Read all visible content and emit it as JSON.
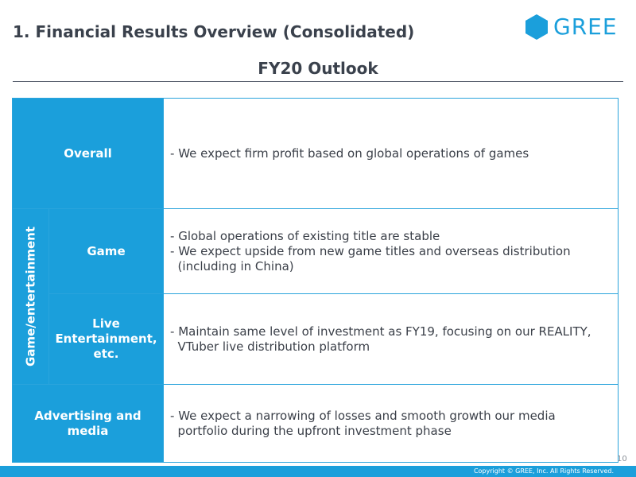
{
  "header": {
    "page_title": "1. Financial Results Overview (Consolidated)",
    "section_title": "FY20 Outlook",
    "logo": {
      "text": "GREE",
      "icon": "hexagon-logo-icon",
      "color": "#1b9fdb"
    }
  },
  "table": {
    "group_label": "Game/entertainment",
    "rows": [
      {
        "heading": "Overall",
        "lines": [
          "- We expect firm profit based on global operations of games"
        ]
      },
      {
        "heading": "Game",
        "lines": [
          "- Global operations of existing title are stable",
          "- We expect upside from new game titles and overseas distribution",
          "  (including in China)"
        ]
      },
      {
        "heading_lines": [
          "Live",
          "Entertainment,",
          "etc."
        ],
        "lines": [
          "- Maintain same level of investment as FY19, focusing on our REALITY,",
          "  VTuber live distribution platform"
        ]
      },
      {
        "heading_lines": [
          "Advertising and",
          "media"
        ],
        "lines": [
          "- We expect a narrowing of losses and smooth growth our media",
          "  portfolio during the upfront investment phase"
        ]
      }
    ]
  },
  "footer": {
    "page_number": "10",
    "copyright": "Copyright © GREE, Inc. All Rights Reserved."
  },
  "colors": {
    "accent": "#1b9fdb",
    "text": "#3a414c",
    "border": "#2aa4dc"
  }
}
